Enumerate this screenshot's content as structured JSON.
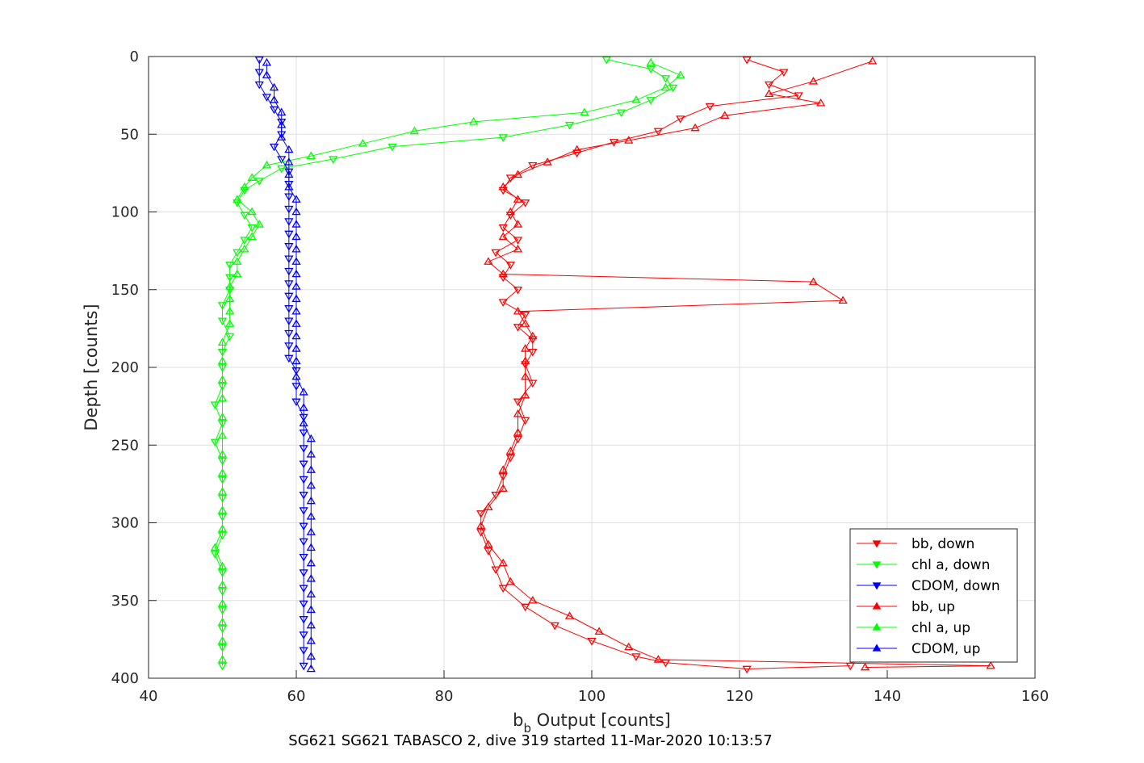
{
  "chart_data": {
    "type": "scatter",
    "title": "SG621 SG621 TABASCO 2, dive 319 started 11-Mar-2020 10:13:57",
    "xlabel_main": "b",
    "xlabel_sub": "b",
    "xlabel_rest": " Output [counts]",
    "ylabel": "Depth [counts]",
    "xlim": [
      40,
      160
    ],
    "ylim": [
      0,
      400
    ],
    "y_reversed": true,
    "xticks": [
      "40",
      "60",
      "80",
      "100",
      "120",
      "140",
      "160"
    ],
    "yticks": [
      "0",
      "50",
      "100",
      "150",
      "200",
      "250",
      "300",
      "350",
      "400"
    ],
    "grid": true,
    "legend_position": "bottom-right",
    "series": [
      {
        "name": "bb, down",
        "color": "#ff0000",
        "marker": "triangle-down",
        "points": [
          [
            121,
            2
          ],
          [
            126,
            10
          ],
          [
            124,
            18
          ],
          [
            128,
            25
          ],
          [
            116,
            32
          ],
          [
            112,
            40
          ],
          [
            109,
            48
          ],
          [
            103,
            55
          ],
          [
            98,
            62
          ],
          [
            92,
            70
          ],
          [
            89,
            78
          ],
          [
            88,
            86
          ],
          [
            91,
            94
          ],
          [
            89,
            102
          ],
          [
            88,
            110
          ],
          [
            90,
            118
          ],
          [
            87,
            126
          ],
          [
            89,
            134
          ],
          [
            88,
            142
          ],
          [
            90,
            150
          ],
          [
            88,
            158
          ],
          [
            91,
            166
          ],
          [
            90,
            174
          ],
          [
            92,
            182
          ],
          [
            92,
            190
          ],
          [
            91,
            198
          ],
          [
            92,
            210
          ],
          [
            90,
            222
          ],
          [
            91,
            234
          ],
          [
            90,
            246
          ],
          [
            89,
            258
          ],
          [
            88,
            270
          ],
          [
            87,
            282
          ],
          [
            85,
            294
          ],
          [
            85,
            306
          ],
          [
            86,
            318
          ],
          [
            87,
            330
          ],
          [
            88,
            342
          ],
          [
            91,
            354
          ],
          [
            95,
            366
          ],
          [
            100,
            376
          ],
          [
            106,
            386
          ],
          [
            110,
            390
          ],
          [
            121,
            394
          ],
          [
            135,
            392
          ]
        ]
      },
      {
        "name": "chl a, down",
        "color": "#00ff00",
        "marker": "triangle-down",
        "points": [
          [
            102,
            2
          ],
          [
            108,
            8
          ],
          [
            110,
            14
          ],
          [
            111,
            20
          ],
          [
            108,
            28
          ],
          [
            104,
            36
          ],
          [
            97,
            44
          ],
          [
            88,
            52
          ],
          [
            73,
            58
          ],
          [
            65,
            66
          ],
          [
            58,
            72
          ],
          [
            55,
            80
          ],
          [
            53,
            86
          ],
          [
            52,
            94
          ],
          [
            53,
            102
          ],
          [
            54,
            110
          ],
          [
            53,
            118
          ],
          [
            52,
            126
          ],
          [
            51,
            134
          ],
          [
            51,
            142
          ],
          [
            51,
            150
          ],
          [
            50,
            160
          ],
          [
            50,
            170
          ],
          [
            51,
            180
          ],
          [
            50,
            190
          ],
          [
            50,
            200
          ],
          [
            50,
            212
          ],
          [
            49,
            224
          ],
          [
            50,
            236
          ],
          [
            49,
            248
          ],
          [
            50,
            260
          ],
          [
            50,
            272
          ],
          [
            50,
            284
          ],
          [
            50,
            296
          ],
          [
            50,
            308
          ],
          [
            49,
            320
          ],
          [
            50,
            332
          ],
          [
            50,
            344
          ],
          [
            50,
            356
          ],
          [
            50,
            368
          ],
          [
            50,
            380
          ],
          [
            50,
            392
          ]
        ]
      },
      {
        "name": "CDOM, down",
        "color": "#0000ff",
        "marker": "triangle-down",
        "points": [
          [
            55,
            2
          ],
          [
            55,
            10
          ],
          [
            55,
            18
          ],
          [
            56,
            26
          ],
          [
            57,
            34
          ],
          [
            58,
            42
          ],
          [
            58,
            50
          ],
          [
            57,
            58
          ],
          [
            58,
            66
          ],
          [
            59,
            74
          ],
          [
            59,
            82
          ],
          [
            59,
            90
          ],
          [
            59,
            98
          ],
          [
            59,
            106
          ],
          [
            59,
            114
          ],
          [
            59,
            122
          ],
          [
            59,
            130
          ],
          [
            59,
            138
          ],
          [
            59,
            146
          ],
          [
            59,
            154
          ],
          [
            59,
            162
          ],
          [
            59,
            170
          ],
          [
            59,
            178
          ],
          [
            59,
            186
          ],
          [
            59,
            194
          ],
          [
            60,
            202
          ],
          [
            60,
            212
          ],
          [
            60,
            222
          ],
          [
            61,
            232
          ],
          [
            61,
            242
          ],
          [
            61,
            252
          ],
          [
            61,
            262
          ],
          [
            61,
            272
          ],
          [
            61,
            282
          ],
          [
            61,
            292
          ],
          [
            61,
            302
          ],
          [
            61,
            312
          ],
          [
            61,
            322
          ],
          [
            61,
            332
          ],
          [
            61,
            342
          ],
          [
            61,
            352
          ],
          [
            61,
            362
          ],
          [
            61,
            372
          ],
          [
            61,
            382
          ],
          [
            61,
            392
          ]
        ]
      },
      {
        "name": "bb, up",
        "color": "#ff0000",
        "marker": "triangle-up",
        "points": [
          [
            138,
            3
          ],
          [
            130,
            16
          ],
          [
            124,
            24
          ],
          [
            131,
            30
          ],
          [
            118,
            38
          ],
          [
            114,
            46
          ],
          [
            105,
            54
          ],
          [
            98,
            60
          ],
          [
            94,
            68
          ],
          [
            90,
            76
          ],
          [
            88,
            84
          ],
          [
            90,
            92
          ],
          [
            89,
            100
          ],
          [
            90,
            108
          ],
          [
            88,
            116
          ],
          [
            90,
            124
          ],
          [
            86,
            132
          ],
          [
            88,
            140
          ],
          [
            130,
            145
          ],
          [
            134,
            157
          ],
          [
            90,
            164
          ],
          [
            91,
            172
          ],
          [
            92,
            180
          ],
          [
            91,
            188
          ],
          [
            91,
            196
          ],
          [
            91,
            206
          ],
          [
            91,
            218
          ],
          [
            90,
            230
          ],
          [
            90,
            242
          ],
          [
            89,
            254
          ],
          [
            88,
            266
          ],
          [
            88,
            278
          ],
          [
            86,
            290
          ],
          [
            85,
            302
          ],
          [
            86,
            314
          ],
          [
            88,
            326
          ],
          [
            89,
            338
          ],
          [
            92,
            350
          ],
          [
            97,
            360
          ],
          [
            101,
            370
          ],
          [
            105,
            380
          ],
          [
            109,
            388
          ],
          [
            154,
            392
          ],
          [
            137,
            393
          ]
        ]
      },
      {
        "name": "chl a, up",
        "color": "#00ff00",
        "marker": "triangle-up",
        "points": [
          [
            108,
            4
          ],
          [
            112,
            12
          ],
          [
            110,
            20
          ],
          [
            106,
            28
          ],
          [
            99,
            36
          ],
          [
            84,
            42
          ],
          [
            76,
            48
          ],
          [
            69,
            56
          ],
          [
            62,
            64
          ],
          [
            56,
            70
          ],
          [
            54,
            78
          ],
          [
            53,
            84
          ],
          [
            52,
            92
          ],
          [
            54,
            100
          ],
          [
            55,
            108
          ],
          [
            54,
            116
          ],
          [
            53,
            124
          ],
          [
            52,
            132
          ],
          [
            52,
            140
          ],
          [
            51,
            148
          ],
          [
            51,
            156
          ],
          [
            51,
            164
          ],
          [
            51,
            172
          ],
          [
            50,
            184
          ],
          [
            50,
            196
          ],
          [
            50,
            208
          ],
          [
            50,
            220
          ],
          [
            50,
            232
          ],
          [
            50,
            244
          ],
          [
            50,
            256
          ],
          [
            50,
            268
          ],
          [
            50,
            280
          ],
          [
            50,
            292
          ],
          [
            50,
            304
          ],
          [
            49,
            316
          ],
          [
            50,
            328
          ],
          [
            50,
            340
          ],
          [
            50,
            352
          ],
          [
            50,
            364
          ],
          [
            50,
            376
          ],
          [
            50,
            388
          ]
        ]
      },
      {
        "name": "CDOM, up",
        "color": "#0000ff",
        "marker": "triangle-up",
        "points": [
          [
            56,
            4
          ],
          [
            56,
            12
          ],
          [
            57,
            20
          ],
          [
            57,
            28
          ],
          [
            58,
            36
          ],
          [
            58,
            44
          ],
          [
            58,
            52
          ],
          [
            59,
            60
          ],
          [
            59,
            68
          ],
          [
            59,
            76
          ],
          [
            59,
            84
          ],
          [
            60,
            92
          ],
          [
            60,
            100
          ],
          [
            60,
            108
          ],
          [
            60,
            116
          ],
          [
            60,
            124
          ],
          [
            60,
            132
          ],
          [
            60,
            140
          ],
          [
            60,
            148
          ],
          [
            60,
            156
          ],
          [
            60,
            164
          ],
          [
            60,
            172
          ],
          [
            60,
            180
          ],
          [
            60,
            188
          ],
          [
            60,
            196
          ],
          [
            60,
            206
          ],
          [
            61,
            216
          ],
          [
            61,
            226
          ],
          [
            61,
            236
          ],
          [
            62,
            246
          ],
          [
            62,
            256
          ],
          [
            62,
            266
          ],
          [
            62,
            276
          ],
          [
            62,
            286
          ],
          [
            62,
            296
          ],
          [
            62,
            306
          ],
          [
            62,
            316
          ],
          [
            62,
            326
          ],
          [
            62,
            336
          ],
          [
            62,
            346
          ],
          [
            62,
            356
          ],
          [
            62,
            366
          ],
          [
            62,
            376
          ],
          [
            62,
            386
          ],
          [
            62,
            394
          ]
        ]
      }
    ]
  }
}
